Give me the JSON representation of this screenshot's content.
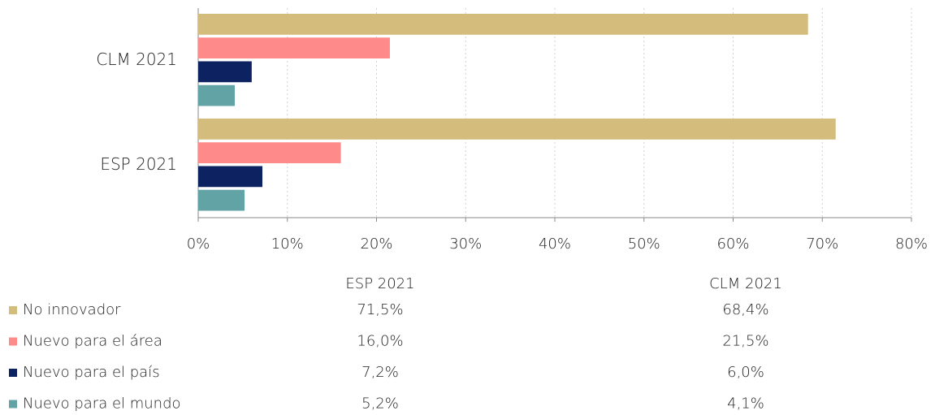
{
  "chart_data": {
    "type": "barh",
    "categories": [
      "CLM 2021",
      "ESP 2021"
    ],
    "series": [
      {
        "name": "No innovador",
        "color": "#d4bc7c",
        "values": [
          68.4,
          71.5
        ],
        "value_labels": [
          "68,4%",
          "71,5%"
        ]
      },
      {
        "name": "Nuevo para el área",
        "color": "#ff8a8a",
        "values": [
          21.5,
          16.0
        ],
        "value_labels": [
          "21,5%",
          "16,0%"
        ]
      },
      {
        "name": "Nuevo para el país",
        "color": "#0d2260",
        "values": [
          6.0,
          7.2
        ],
        "value_labels": [
          "6,0%",
          "7,2%"
        ]
      },
      {
        "name": "Nuevo para el mundo",
        "color": "#62a3a5",
        "values": [
          4.1,
          5.2
        ],
        "value_labels": [
          "4,1%",
          "5,2%"
        ]
      }
    ],
    "xlim": [
      0,
      80
    ],
    "xticks": [
      {
        "value": 0,
        "label": "0%"
      },
      {
        "value": 10,
        "label": "10%"
      },
      {
        "value": 20,
        "label": "20%"
      },
      {
        "value": 30,
        "label": "30%"
      },
      {
        "value": 40,
        "label": "40%"
      },
      {
        "value": 50,
        "label": "50%"
      },
      {
        "value": 60,
        "label": "60%"
      },
      {
        "value": 70,
        "label": "70%"
      },
      {
        "value": 80,
        "label": "80%"
      }
    ],
    "grid": true
  }
}
